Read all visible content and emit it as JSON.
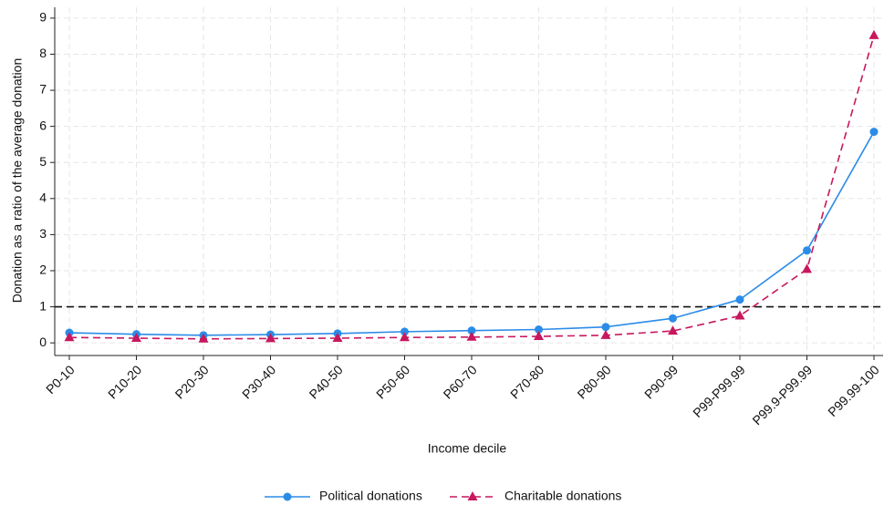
{
  "chart_data": {
    "type": "line",
    "x_label": "Income decile",
    "y_label": "Donation as a ratio of the average donation",
    "categories": [
      "P0-10",
      "P10-20",
      "P20-30",
      "P30-40",
      "P40-50",
      "P50-60",
      "P60-70",
      "P70-80",
      "P80-90",
      "P90-99",
      "P99-P99.99",
      "P99.9-P99.99",
      "P99.99-100"
    ],
    "series": [
      {
        "name": "Political donations",
        "color": "#2b8ce8",
        "marker": "circle",
        "dash": "solid",
        "values": [
          0.28,
          0.24,
          0.21,
          0.23,
          0.26,
          0.31,
          0.34,
          0.37,
          0.44,
          0.68,
          1.2,
          2.56,
          5.85
        ]
      },
      {
        "name": "Charitable donations",
        "color": "#c8175e",
        "marker": "triangle",
        "dash": "dashed",
        "values": [
          0.15,
          0.13,
          0.11,
          0.12,
          0.13,
          0.15,
          0.16,
          0.18,
          0.21,
          0.33,
          0.75,
          2.04,
          8.52
        ]
      }
    ],
    "reference_line": 1,
    "ylim": [
      -0.35,
      9.3
    ],
    "yticks": [
      0,
      1,
      2,
      3,
      4,
      5,
      6,
      7,
      8,
      9
    ],
    "grid": true,
    "legend": "bottom"
  }
}
